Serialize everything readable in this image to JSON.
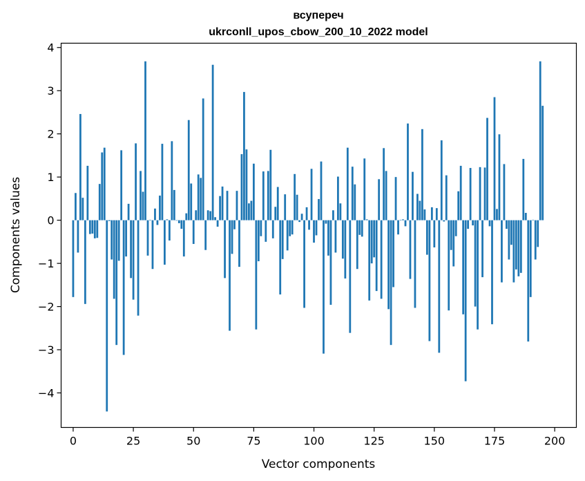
{
  "chart_data": {
    "type": "bar",
    "title_line1": "всупереч",
    "title_line2": "ukrconll_upos_cbow_200_10_2022 model",
    "xlabel": "Vector components",
    "ylabel": "Components values",
    "xlim": [
      -5,
      209
    ],
    "ylim": [
      -4.8,
      4.1
    ],
    "xticks": [
      0,
      25,
      50,
      75,
      100,
      125,
      150,
      175,
      200
    ],
    "yticks": [
      -4,
      -3,
      -2,
      -1,
      0,
      1,
      2,
      3,
      4
    ],
    "bar_color": "#1f77b4",
    "grid": false,
    "values": [
      -1.78,
      0.63,
      -0.75,
      2.46,
      0.52,
      -1.94,
      1.26,
      -0.32,
      -0.31,
      -0.42,
      -0.41,
      0.84,
      1.57,
      1.68,
      -4.43,
      -0.02,
      -0.91,
      -1.82,
      -2.89,
      -0.94,
      1.62,
      -3.12,
      -0.84,
      0.38,
      -1.34,
      -1.84,
      1.78,
      -2.21,
      1.14,
      0.66,
      3.68,
      -0.82,
      0.01,
      -1.13,
      0.27,
      -0.11,
      0.57,
      1.77,
      -1.03,
      0.02,
      -0.47,
      1.83,
      0.7,
      -0.01,
      -0.07,
      -0.2,
      -0.84,
      0.16,
      2.32,
      0.85,
      -0.55,
      0.23,
      1.06,
      0.98,
      2.82,
      -0.69,
      0.23,
      0.21,
      3.6,
      0.07,
      -0.15,
      0.56,
      0.78,
      -1.34,
      0.68,
      -2.56,
      -0.78,
      -0.21,
      0.68,
      -1.08,
      1.53,
      2.97,
      1.64,
      0.39,
      0.45,
      1.31,
      -2.53,
      -0.95,
      -0.37,
      1.13,
      -0.5,
      1.14,
      1.63,
      -0.42,
      0.31,
      0.77,
      -1.72,
      -0.9,
      0.6,
      -0.7,
      -0.37,
      -0.33,
      1.07,
      0.59,
      -0.04,
      0.15,
      -2.03,
      0.3,
      -0.22,
      1.19,
      -0.52,
      -0.35,
      0.49,
      1.36,
      -3.09,
      -0.08,
      -0.82,
      -1.96,
      0.23,
      -0.75,
      1.01,
      0.39,
      -0.89,
      -1.35,
      1.68,
      -2.61,
      1.24,
      0.83,
      -1.13,
      -0.34,
      -0.38,
      1.43,
      0.02,
      -1.86,
      -1.0,
      -0.86,
      -1.64,
      0.95,
      -1.82,
      1.67,
      1.14,
      -2.06,
      -2.89,
      -1.55,
      1.0,
      -0.33,
      0.01,
      0.02,
      -0.14,
      2.24,
      -1.36,
      1.12,
      -2.03,
      0.61,
      0.45,
      2.11,
      0.25,
      -0.8,
      -2.8,
      0.3,
      -0.63,
      0.28,
      -3.07,
      1.85,
      -0.03,
      1.04,
      -2.09,
      -0.69,
      -1.07,
      -0.37,
      0.67,
      1.26,
      -2.18,
      -3.73,
      -0.2,
      1.21,
      -0.12,
      -2.0,
      -2.53,
      1.23,
      -1.32,
      1.22,
      2.37,
      -0.14,
      -2.41,
      2.85,
      0.26,
      1.99,
      -1.44,
      1.3,
      -0.2,
      -0.91,
      -0.57,
      -1.44,
      -1.14,
      -1.3,
      -1.22,
      1.42,
      0.17,
      -2.81,
      -1.78,
      0.01,
      -0.91,
      -0.62,
      3.68,
      2.65
    ]
  }
}
